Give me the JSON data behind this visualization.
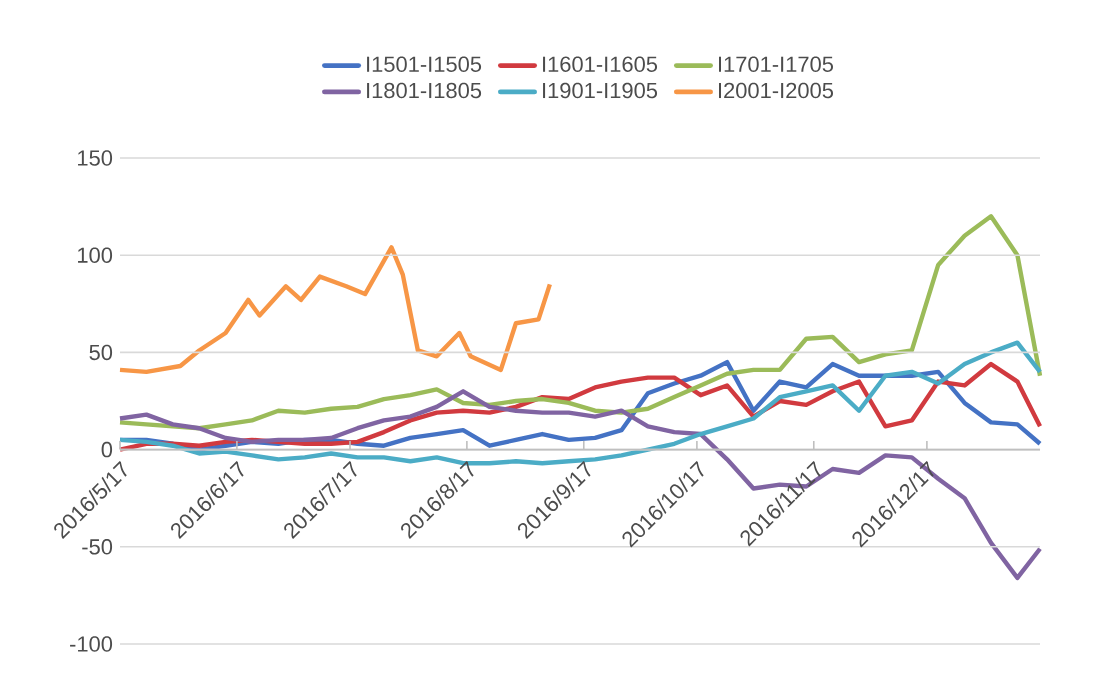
{
  "chart_data": {
    "type": "line",
    "x": [
      "2016-05-17",
      "2016-05-24",
      "2016-05-31",
      "2016-06-07",
      "2016-06-14",
      "2016-06-21",
      "2016-06-28",
      "2016-07-05",
      "2016-07-12",
      "2016-07-19",
      "2016-07-26",
      "2016-08-02",
      "2016-08-09",
      "2016-08-16",
      "2016-08-23",
      "2016-08-30",
      "2016-09-06",
      "2016-09-13",
      "2016-09-20",
      "2016-09-27",
      "2016-10-04",
      "2016-10-11",
      "2016-10-18",
      "2016-10-25",
      "2016-11-01",
      "2016-11-08",
      "2016-11-15",
      "2016-11-22",
      "2016-11-29",
      "2016-12-06",
      "2016-12-13",
      "2016-12-20",
      "2016-12-27",
      "2017-01-03",
      "2017-01-10",
      "2017-01-16"
    ],
    "series": [
      {
        "name": "I1501-I1505",
        "color": "#4472c4",
        "values": [
          5,
          5,
          3,
          0,
          2,
          4,
          3,
          5,
          5,
          3,
          2,
          6,
          8,
          10,
          2,
          5,
          8,
          5,
          6,
          10,
          29,
          34,
          38,
          45,
          20,
          35,
          32,
          44,
          38,
          38,
          38,
          40,
          24,
          14,
          13,
          3
        ]
      },
      {
        "name": "I1601-I1605",
        "color": "#d13a3f",
        "values": [
          0,
          3,
          3,
          2,
          4,
          5,
          4,
          3,
          3,
          4,
          9,
          15,
          19,
          20,
          19,
          22,
          27,
          26,
          32,
          35,
          37,
          37,
          28,
          33,
          17,
          25,
          23,
          30,
          35,
          12,
          15,
          35,
          33,
          44,
          35,
          12
        ]
      },
      {
        "name": "I1701-I1705",
        "color": "#9bbb59",
        "values": [
          14,
          13,
          12,
          11,
          13,
          15,
          20,
          19,
          21,
          22,
          26,
          28,
          31,
          24,
          23,
          25,
          26,
          24,
          20,
          19,
          21,
          27,
          33,
          39,
          41,
          41,
          57,
          58,
          45,
          49,
          51,
          95,
          110,
          120,
          100,
          38
        ]
      },
      {
        "name": "I1801-I1805",
        "color": "#8064a2",
        "values": [
          16,
          18,
          13,
          11,
          6,
          4,
          5,
          5,
          6,
          11,
          15,
          17,
          22,
          30,
          22,
          20,
          19,
          19,
          17,
          20,
          12,
          9,
          8,
          -5,
          -20,
          -18,
          -19,
          -10,
          -12,
          -3,
          -4,
          -15,
          -25,
          -48,
          -66,
          -51
        ]
      },
      {
        "name": "I1901-I1905",
        "color": "#4bacc6",
        "values": [
          5,
          4,
          2,
          -2,
          -1,
          -3,
          -5,
          -4,
          -2,
          -4,
          -4,
          -6,
          -4,
          -7,
          -7,
          -6,
          -7,
          -6,
          -5,
          -3,
          0,
          3,
          8,
          12,
          16,
          27,
          30,
          33,
          20,
          38,
          40,
          34,
          44,
          50,
          55,
          40
        ]
      },
      {
        "name": "I2001-I2005",
        "color": "#f79646",
        "x": [
          "2016-05-17",
          "2016-05-24",
          "2016-06-02",
          "2016-06-07",
          "2016-06-14",
          "2016-06-20",
          "2016-06-23",
          "2016-06-30",
          "2016-07-04",
          "2016-07-09",
          "2016-07-16",
          "2016-07-21",
          "2016-07-28",
          "2016-07-31",
          "2016-08-04",
          "2016-08-09",
          "2016-08-15",
          "2016-08-18",
          "2016-08-26",
          "2016-08-30",
          "2016-09-05",
          "2016-09-08"
        ],
        "values": [
          41,
          40,
          43,
          51,
          60,
          77,
          69,
          84,
          77,
          89,
          84,
          80,
          104,
          90,
          51,
          48,
          60,
          48,
          41,
          65,
          67,
          85
        ]
      }
    ],
    "xlim": [
      "2016-05-17",
      "2017-01-16"
    ],
    "xticks": [
      {
        "value": "2016-05-17",
        "label": "2016/5/17"
      },
      {
        "value": "2016-06-17",
        "label": "2016/6/17"
      },
      {
        "value": "2016-07-17",
        "label": "2016/7/17"
      },
      {
        "value": "2016-08-17",
        "label": "2016/8/17"
      },
      {
        "value": "2016-09-17",
        "label": "2016/9/17"
      },
      {
        "value": "2016-10-17",
        "label": "2016/10/17"
      },
      {
        "value": "2016-11-17",
        "label": "2016/11/17"
      },
      {
        "value": "2016-12-17",
        "label": "2016/12/17"
      }
    ],
    "ylim": [
      -100,
      150
    ],
    "yticks": [
      -100,
      -50,
      0,
      50,
      100,
      150
    ],
    "grid": "y",
    "legend": "top"
  }
}
